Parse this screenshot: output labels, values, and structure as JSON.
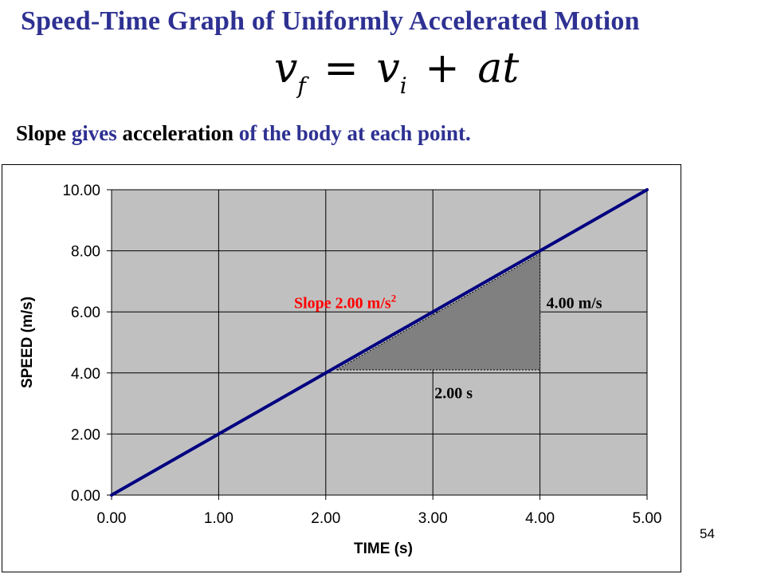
{
  "slide": {
    "title": "Speed-Time Graph of Uniformly Accelerated Motion",
    "formula": {
      "v": "v",
      "f": "f",
      "eq": "=",
      "i": "i",
      "plus": "+",
      "at": "at"
    },
    "subtitle": [
      {
        "text": "Slope",
        "style": "dark"
      },
      {
        "text": " gives ",
        "style": "blue"
      },
      {
        "text": "acceleration",
        "style": "dark"
      },
      {
        "text": " of the body at each point.",
        "style": "blue"
      }
    ],
    "page_number": "54"
  },
  "colors": {
    "title": "#2e3192",
    "plot_background": "#c0c0c0",
    "line": "#000080",
    "triangle_fill": "#808080",
    "slope_label": "#ff0000"
  },
  "chart_data": {
    "type": "line",
    "xlabel": "TIME (s)",
    "ylabel": "SPEED (m/s)",
    "xlim": [
      0,
      5
    ],
    "ylim": [
      0,
      10
    ],
    "x_ticks": [
      0,
      1,
      2,
      3,
      4,
      5
    ],
    "y_ticks": [
      0,
      2,
      4,
      6,
      8,
      10
    ],
    "x_tick_labels": [
      "0.00",
      "1.00",
      "2.00",
      "3.00",
      "4.00",
      "5.00"
    ],
    "y_tick_labels": [
      "0.00",
      "2.00",
      "4.00",
      "6.00",
      "8.00",
      "10.00"
    ],
    "grid": true,
    "series": [
      {
        "x": [
          0,
          1,
          2,
          3,
          4,
          5
        ],
        "y": [
          0,
          2,
          4,
          6,
          8,
          10
        ]
      }
    ],
    "annotations": {
      "slope_label": "Slope 2.00 m/s",
      "slope_unit_exponent": "2",
      "rise_label": "4.00 m/s",
      "run_label": "2.00 s",
      "triangle": {
        "x0": 2.1,
        "x1": 4.0,
        "y0": 4.1,
        "y1": 7.9
      }
    }
  }
}
